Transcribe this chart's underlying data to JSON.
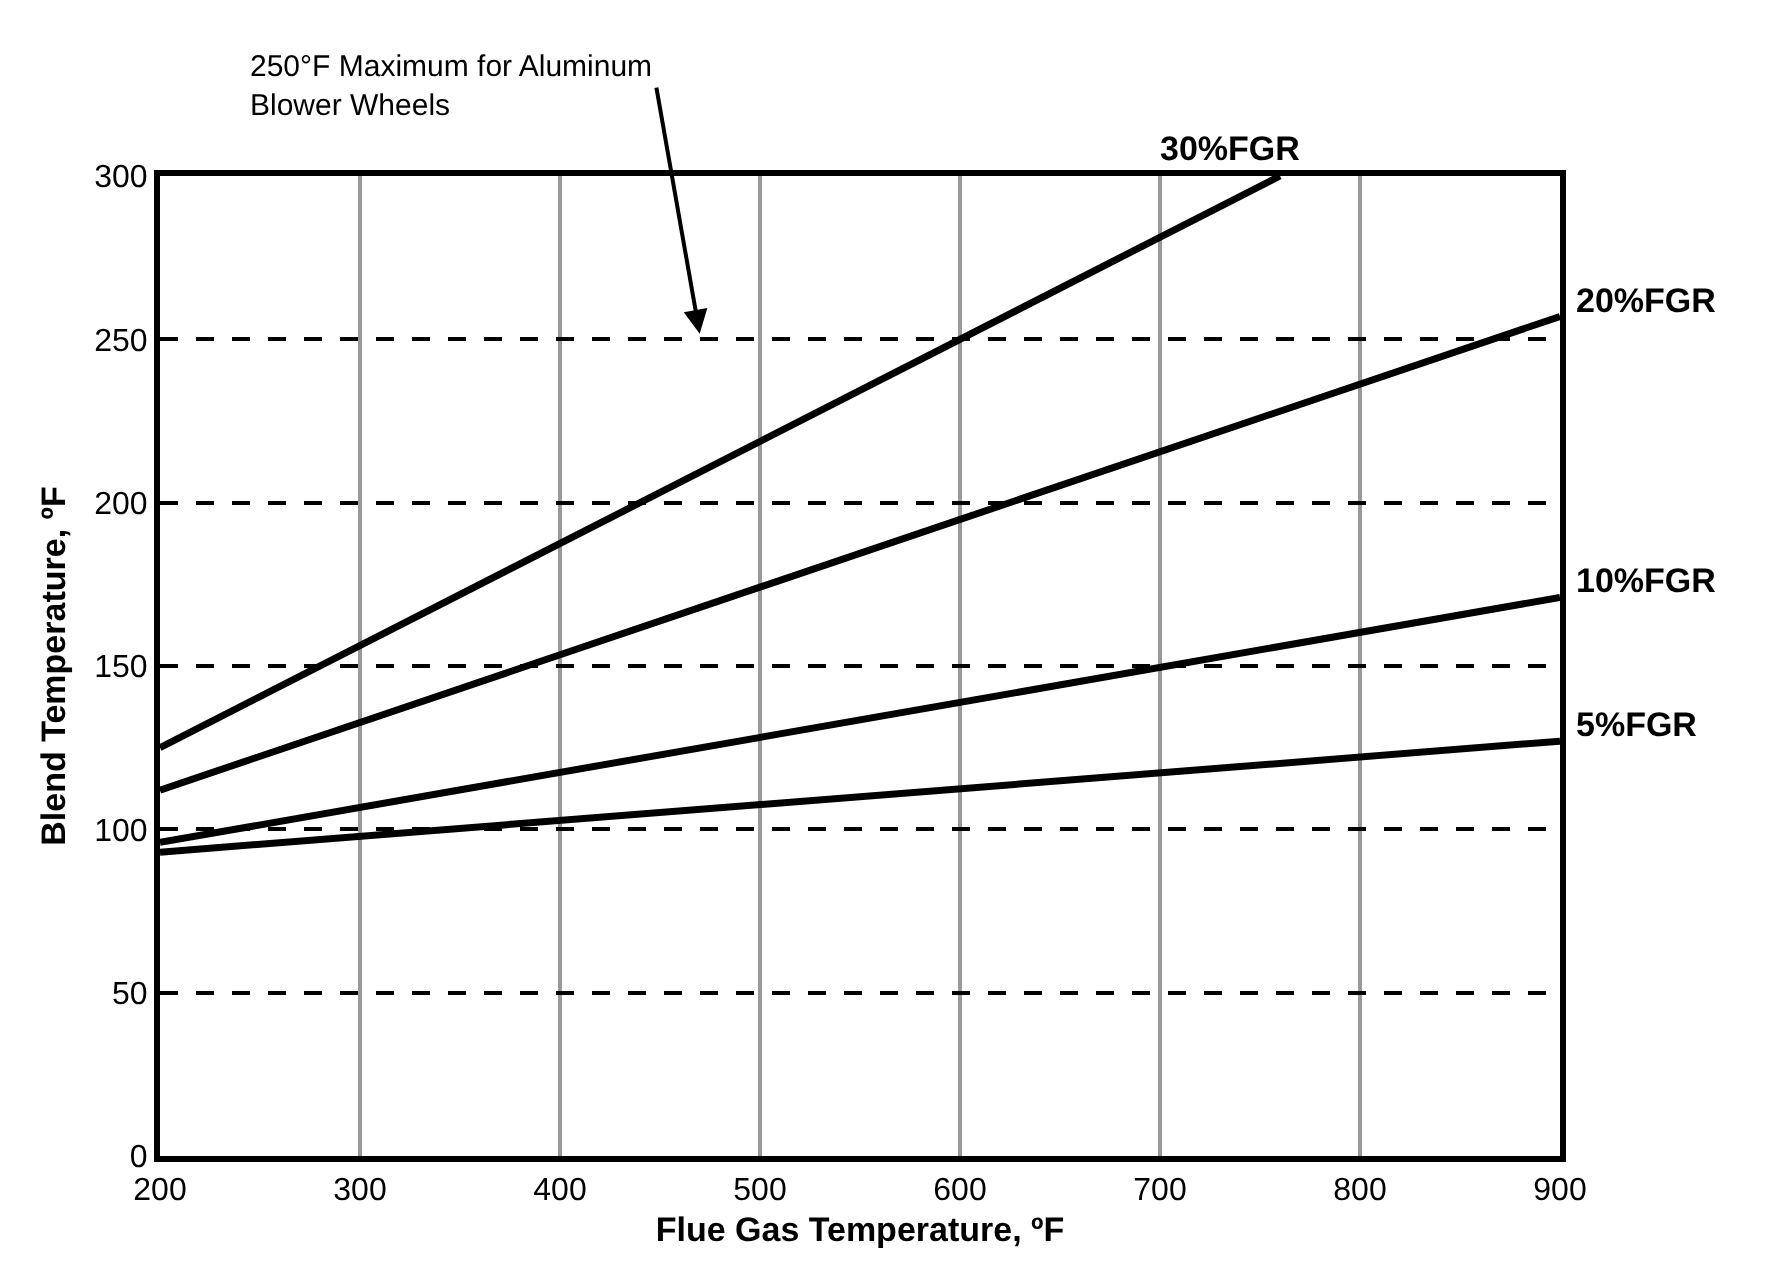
{
  "chart_data": {
    "type": "line",
    "xlabel": "Flue Gas Temperature, ºF",
    "ylabel": "Blend Temperature, ºF",
    "xlim": [
      200,
      900
    ],
    "xticks": [
      200,
      300,
      400,
      500,
      600,
      700,
      800,
      900
    ],
    "ylim": [
      0,
      300
    ],
    "yticks": [
      0,
      50,
      100,
      150,
      200,
      250,
      300
    ],
    "grid": true,
    "legend": false,
    "marker": "none",
    "line_style": "solid",
    "series": [
      {
        "name": "30%FGR",
        "color": "#000000",
        "x": [
          200,
          760
        ],
        "values": [
          125,
          300
        ]
      },
      {
        "name": "20%FGR",
        "color": "#000000",
        "x": [
          200,
          900
        ],
        "values": [
          112,
          257
        ]
      },
      {
        "name": "10%FGR",
        "color": "#000000",
        "x": [
          200,
          900
        ],
        "values": [
          96,
          171
        ]
      },
      {
        "name": "5%FGR",
        "color": "#000000",
        "x": [
          200,
          900
        ],
        "values": [
          93,
          127
        ]
      }
    ],
    "annotations": [
      "250°F Maximum for Aluminum\nBlower Wheels"
    ]
  }
}
